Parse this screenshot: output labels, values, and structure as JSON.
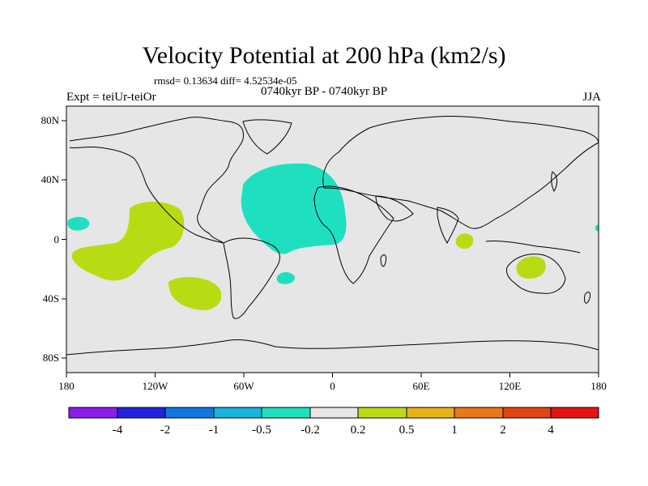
{
  "title": "Velocity Potential at 200 hPa (km2/s)",
  "stats_line": "rmsd= 0.13634 diff= 4.52534e-05",
  "experiment": "Expt = teiUr-teiOr",
  "period": "0740kyr BP - 0740kyr BP",
  "season": "JJA",
  "map": {
    "lon_ticks": [
      "180",
      "120W",
      "60W",
      "0",
      "60E",
      "120E",
      "180"
    ],
    "lat_ticks": [
      "80N",
      "40N",
      "0",
      "40S",
      "80S"
    ]
  },
  "colorbar": {
    "labels": [
      "-4",
      "-2",
      "-1",
      "-0.5",
      "-0.2",
      "0.2",
      "0.5",
      "1",
      "2",
      "4"
    ],
    "colors": [
      "#8c1ce8",
      "#2222dd",
      "#1177dd",
      "#14b4dc",
      "#1ee0c0",
      "#e6e6e6",
      "#b8dc14",
      "#e8b214",
      "#e87818",
      "#e04410",
      "#e41414"
    ]
  },
  "colors": {
    "ocean": "#e6e6e6",
    "negative_anomaly": "#1ee0c0",
    "positive_anomaly": "#b8dc14"
  }
}
